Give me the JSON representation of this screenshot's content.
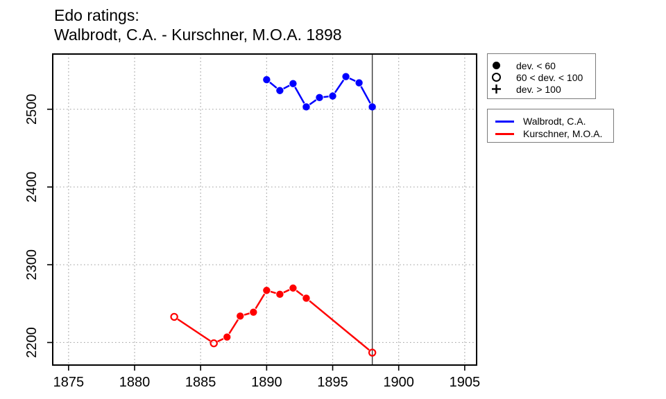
{
  "title": {
    "line1": "Edo ratings:",
    "line2": "Walbrodt, C.A. - Kurschner, M.O.A. 1898"
  },
  "chart_data": {
    "type": "line",
    "title": "Edo ratings: Walbrodt, C.A. - Kurschner, M.O.A. 1898",
    "xlabel": "",
    "ylabel": "",
    "xlim": [
      1873.8,
      1905.9
    ],
    "ylim": [
      2171,
      2571
    ],
    "xticks": [
      1875,
      1880,
      1885,
      1890,
      1895,
      1900,
      1905
    ],
    "yticks": [
      2200,
      2300,
      2400,
      2500
    ],
    "grid": "dotted",
    "legend_position": "right",
    "vline_x": 1898,
    "marker_meaning": {
      "filled-circle": "dev. < 60",
      "open-circle": "60 < dev. < 100",
      "plus": "dev. > 100"
    },
    "series": [
      {
        "name": "Walbrodt, C.A.",
        "color": "#0000ff",
        "points": [
          {
            "year": 1890,
            "rating": 2538,
            "marker": "filled"
          },
          {
            "year": 1891,
            "rating": 2524,
            "marker": "filled"
          },
          {
            "year": 1892,
            "rating": 2533,
            "marker": "filled"
          },
          {
            "year": 1893,
            "rating": 2503,
            "marker": "filled"
          },
          {
            "year": 1894,
            "rating": 2515,
            "marker": "filled"
          },
          {
            "year": 1895,
            "rating": 2517,
            "marker": "filled"
          },
          {
            "year": 1896,
            "rating": 2542,
            "marker": "filled"
          },
          {
            "year": 1897,
            "rating": 2534,
            "marker": "filled"
          },
          {
            "year": 1898,
            "rating": 2503,
            "marker": "filled"
          }
        ]
      },
      {
        "name": "Kurschner, M.O.A.",
        "color": "#ff0000",
        "points": [
          {
            "year": 1883,
            "rating": 2233,
            "marker": "open"
          },
          {
            "year": 1886,
            "rating": 2199,
            "marker": "open"
          },
          {
            "year": 1887,
            "rating": 2207,
            "marker": "filled"
          },
          {
            "year": 1888,
            "rating": 2234,
            "marker": "filled"
          },
          {
            "year": 1889,
            "rating": 2239,
            "marker": "filled"
          },
          {
            "year": 1890,
            "rating": 2267,
            "marker": "filled"
          },
          {
            "year": 1891,
            "rating": 2262,
            "marker": "filled"
          },
          {
            "year": 1892,
            "rating": 2270,
            "marker": "filled"
          },
          {
            "year": 1893,
            "rating": 2257,
            "marker": "filled"
          },
          {
            "year": 1898,
            "rating": 2187,
            "marker": "open"
          }
        ]
      }
    ]
  },
  "legends": {
    "markers": {
      "items": [
        {
          "symbol": "filled-circle",
          "label": "dev. < 60"
        },
        {
          "symbol": "open-circle",
          "label": "60 < dev. < 100"
        },
        {
          "symbol": "plus",
          "label": "dev. > 100"
        }
      ]
    },
    "series": {
      "items": [
        {
          "label": "Walbrodt, C.A.",
          "color": "#0000ff"
        },
        {
          "label": "Kurschner, M.O.A.",
          "color": "#ff0000"
        }
      ]
    }
  }
}
